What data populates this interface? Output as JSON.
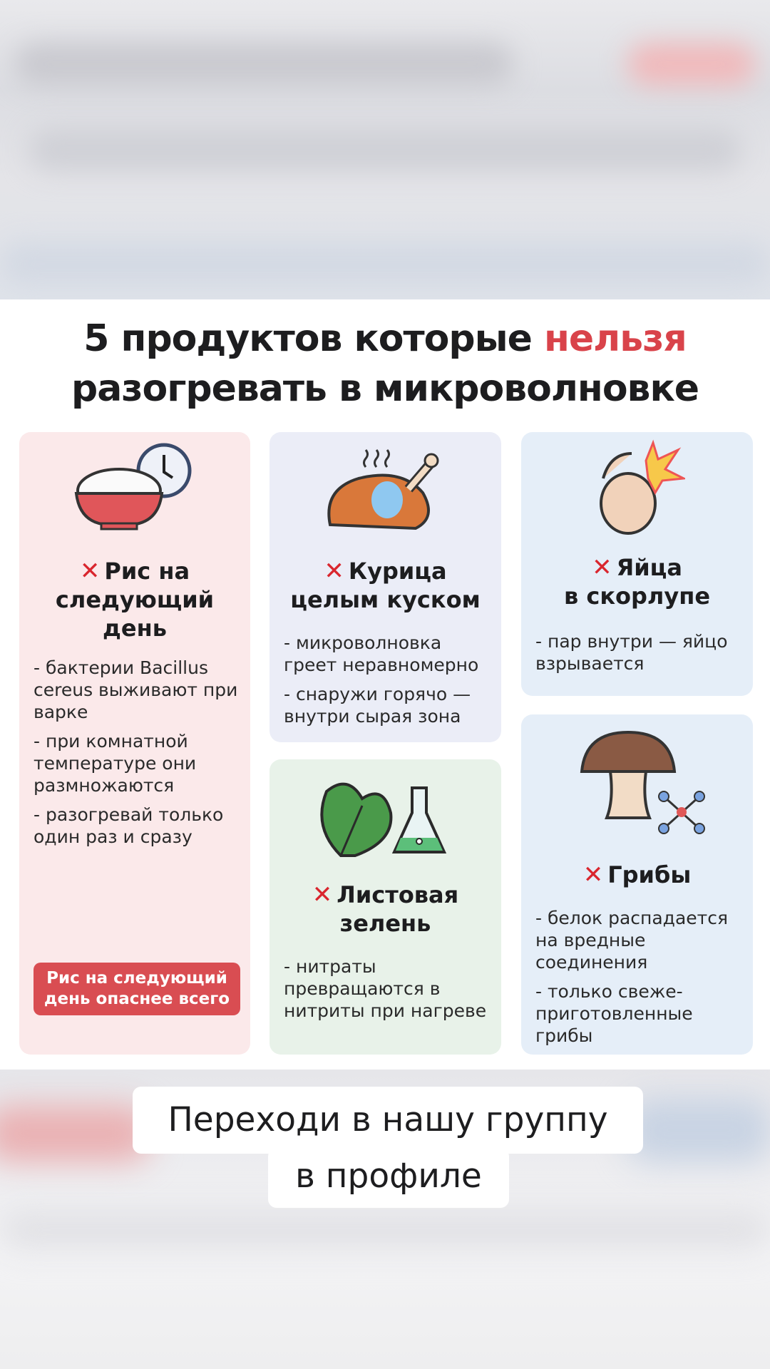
{
  "title": {
    "part1": "5 продуктов которые ",
    "highlight": "нельзя",
    "line2": "разогревать в микроволновке"
  },
  "colors": {
    "accent": "#d9434a",
    "cross": "#d9262e",
    "badge": "#d94d52"
  },
  "cross_icon": "✕",
  "cards": [
    {
      "id": "rice",
      "icon": "rice-bowl-clock-icon",
      "heading": [
        "Рис на",
        "следующий",
        "день"
      ],
      "bullets": [
        "- бактерии Bacillus cereus выживают при варке",
        "- при комнатной температуре они размножаются",
        "- разогревай только один раз и сразу"
      ],
      "badge": "Рис на следующий день опаснее всего"
    },
    {
      "id": "chicken",
      "icon": "roast-chicken-icon",
      "heading": [
        "Курица",
        "целым куском"
      ],
      "bullets": [
        "- микроволновка греет неравномерно",
        "- снаружи горячо — внутри сырая зона"
      ]
    },
    {
      "id": "greens",
      "icon": "leafy-greens-flask-icon",
      "heading": [
        "Листовая",
        "зелень"
      ],
      "bullets": [
        "- нитраты превращаются в нитриты при нагреве"
      ]
    },
    {
      "id": "eggs",
      "icon": "exploding-egg-icon",
      "heading": [
        "Яйца",
        "в скорлупе"
      ],
      "bullets": [
        "- пар внутри — яйцо взрывается"
      ]
    },
    {
      "id": "mushrooms",
      "icon": "mushroom-molecule-icon",
      "heading": [
        "Грибы"
      ],
      "bullets": [
        "- белок распадается на вредные соединения",
        "- только свеже-приготовленные грибы"
      ]
    }
  ],
  "cta": {
    "line1": "Переходи в нашу группу",
    "line2": "в профиле"
  }
}
